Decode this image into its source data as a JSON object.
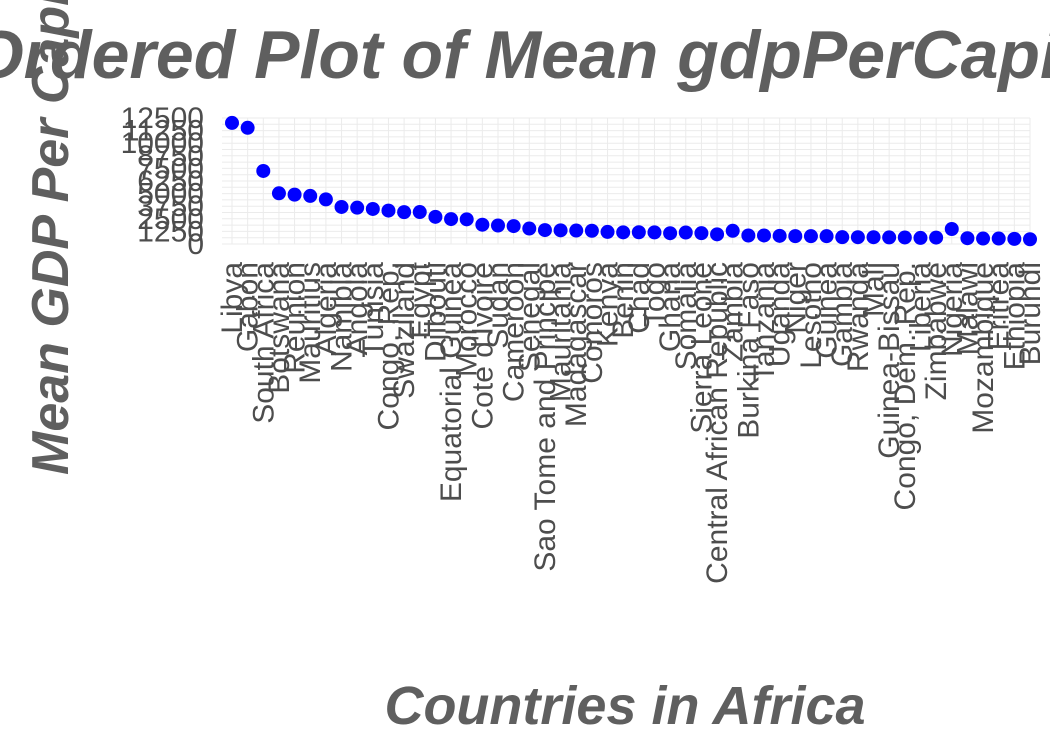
{
  "chart_data": {
    "type": "scatter",
    "title": "Ordered Plot of Mean gdpPerCapita",
    "xlabel": "Countries in Africa",
    "ylabel": "Mean GDP Per Capita",
    "ylim": [
      0,
      12500
    ],
    "y_ticks": [
      "0",
      "1250",
      "2500",
      "3750",
      "5000",
      "6250",
      "7500",
      "8750",
      "10000",
      "11250",
      "12500"
    ],
    "grid": true,
    "point_color": "#0000ff",
    "categories": [
      "Libya",
      "Gabon",
      "South Africa",
      "Botswana",
      "Reunion",
      "Mauritius",
      "Algeria",
      "Namibia",
      "Angola",
      "Tunisia",
      "Congo, Rep.",
      "Swaziland",
      "Egypt",
      "Djibouti",
      "Equatorial Guinea",
      "Morocco",
      "Cote d'Ivoire",
      "Sudan",
      "Cameroon",
      "Senegal",
      "Sao Tome and Principe",
      "Mauritania",
      "Madagascar",
      "Comoros",
      "Kenya",
      "Benin",
      "Chad",
      "Togo",
      "Ghana",
      "Somalia",
      "Sierra Leone",
      "Central African Republic",
      "Zambia",
      "Burkina Faso",
      "Tanzania",
      "Uganda",
      "Niger",
      "Lesotho",
      "Guinea",
      "Gambia",
      "Rwanda",
      "Mali",
      "Guinea-Bissau",
      "Congo, Dem. Rep.",
      "Liberia",
      "Zimbabwe",
      "Nigeria",
      "Malawi",
      "Mozambique",
      "Eritrea",
      "Ethiopia",
      "Burundi"
    ],
    "values": [
      12014,
      11530,
      7247,
      5031,
      4898,
      4769,
      4426,
      3675,
      3607,
      3478,
      3313,
      3163,
      3169,
      2697,
      2469,
      2447,
      1912,
      1835,
      1775,
      1533,
      1382,
      1356,
      1335,
      1314,
      1200,
      1155,
      1165,
      1153,
      1072,
      1140,
      1073,
      959,
      1311,
      844,
      849,
      810,
      781,
      780,
      777,
      680,
      675,
      673,
      652,
      648,
      604,
      635,
      1488,
      575,
      542,
      541,
      509,
      471
    ]
  }
}
